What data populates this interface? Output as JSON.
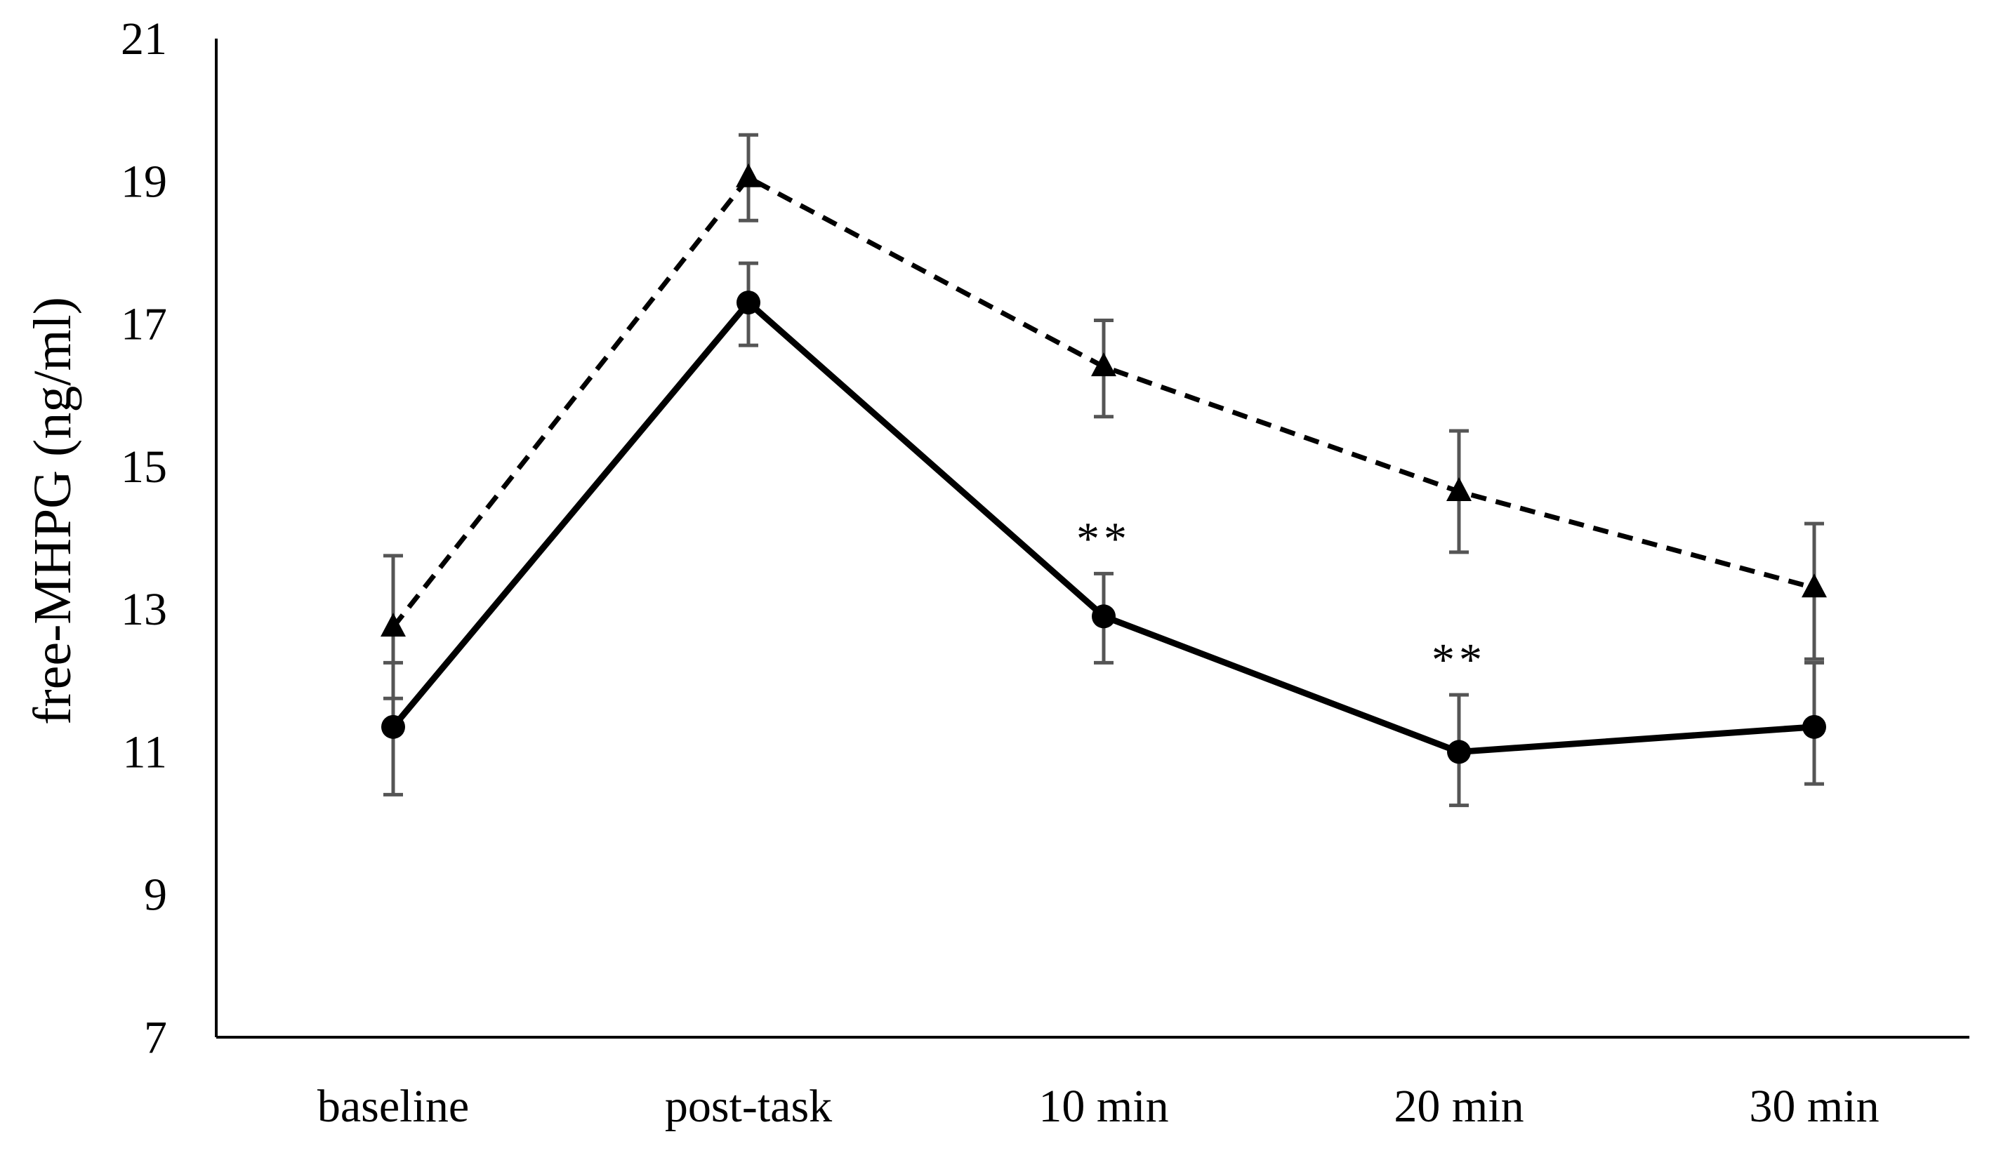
{
  "chart_data": {
    "type": "line",
    "title": "",
    "xlabel": "",
    "ylabel": "free-MHPG (ng/ml)",
    "categories": [
      "baseline",
      "post-task",
      "10 min",
      "20 min",
      "30 min"
    ],
    "ylim": [
      7,
      21
    ],
    "yticks": [
      "7",
      "9",
      "11",
      "13",
      "15",
      "17",
      "19",
      "21"
    ],
    "grid": false,
    "legend": "none",
    "series": [
      {
        "name": "dashed-triangle",
        "line_style": "dashed",
        "marker": "triangle",
        "color": "#000000",
        "values": [
          12.75,
          19.05,
          16.4,
          14.65,
          13.3
        ],
        "err_low": [
          11.75,
          18.45,
          15.7,
          13.8,
          12.3
        ],
        "err_high": [
          13.75,
          19.65,
          17.05,
          15.5,
          14.2
        ]
      },
      {
        "name": "solid-circle",
        "line_style": "solid",
        "marker": "circle",
        "color": "#000000",
        "values": [
          11.35,
          17.3,
          12.9,
          11.0,
          11.35
        ],
        "err_low": [
          10.4,
          16.7,
          12.25,
          10.25,
          10.55
        ],
        "err_high": [
          12.25,
          17.85,
          13.5,
          11.8,
          12.25
        ]
      }
    ],
    "annotations": [
      {
        "category": "10 min",
        "text": "**"
      },
      {
        "category": "20 min",
        "text": "**"
      }
    ],
    "error_bar_color": "#555555"
  }
}
